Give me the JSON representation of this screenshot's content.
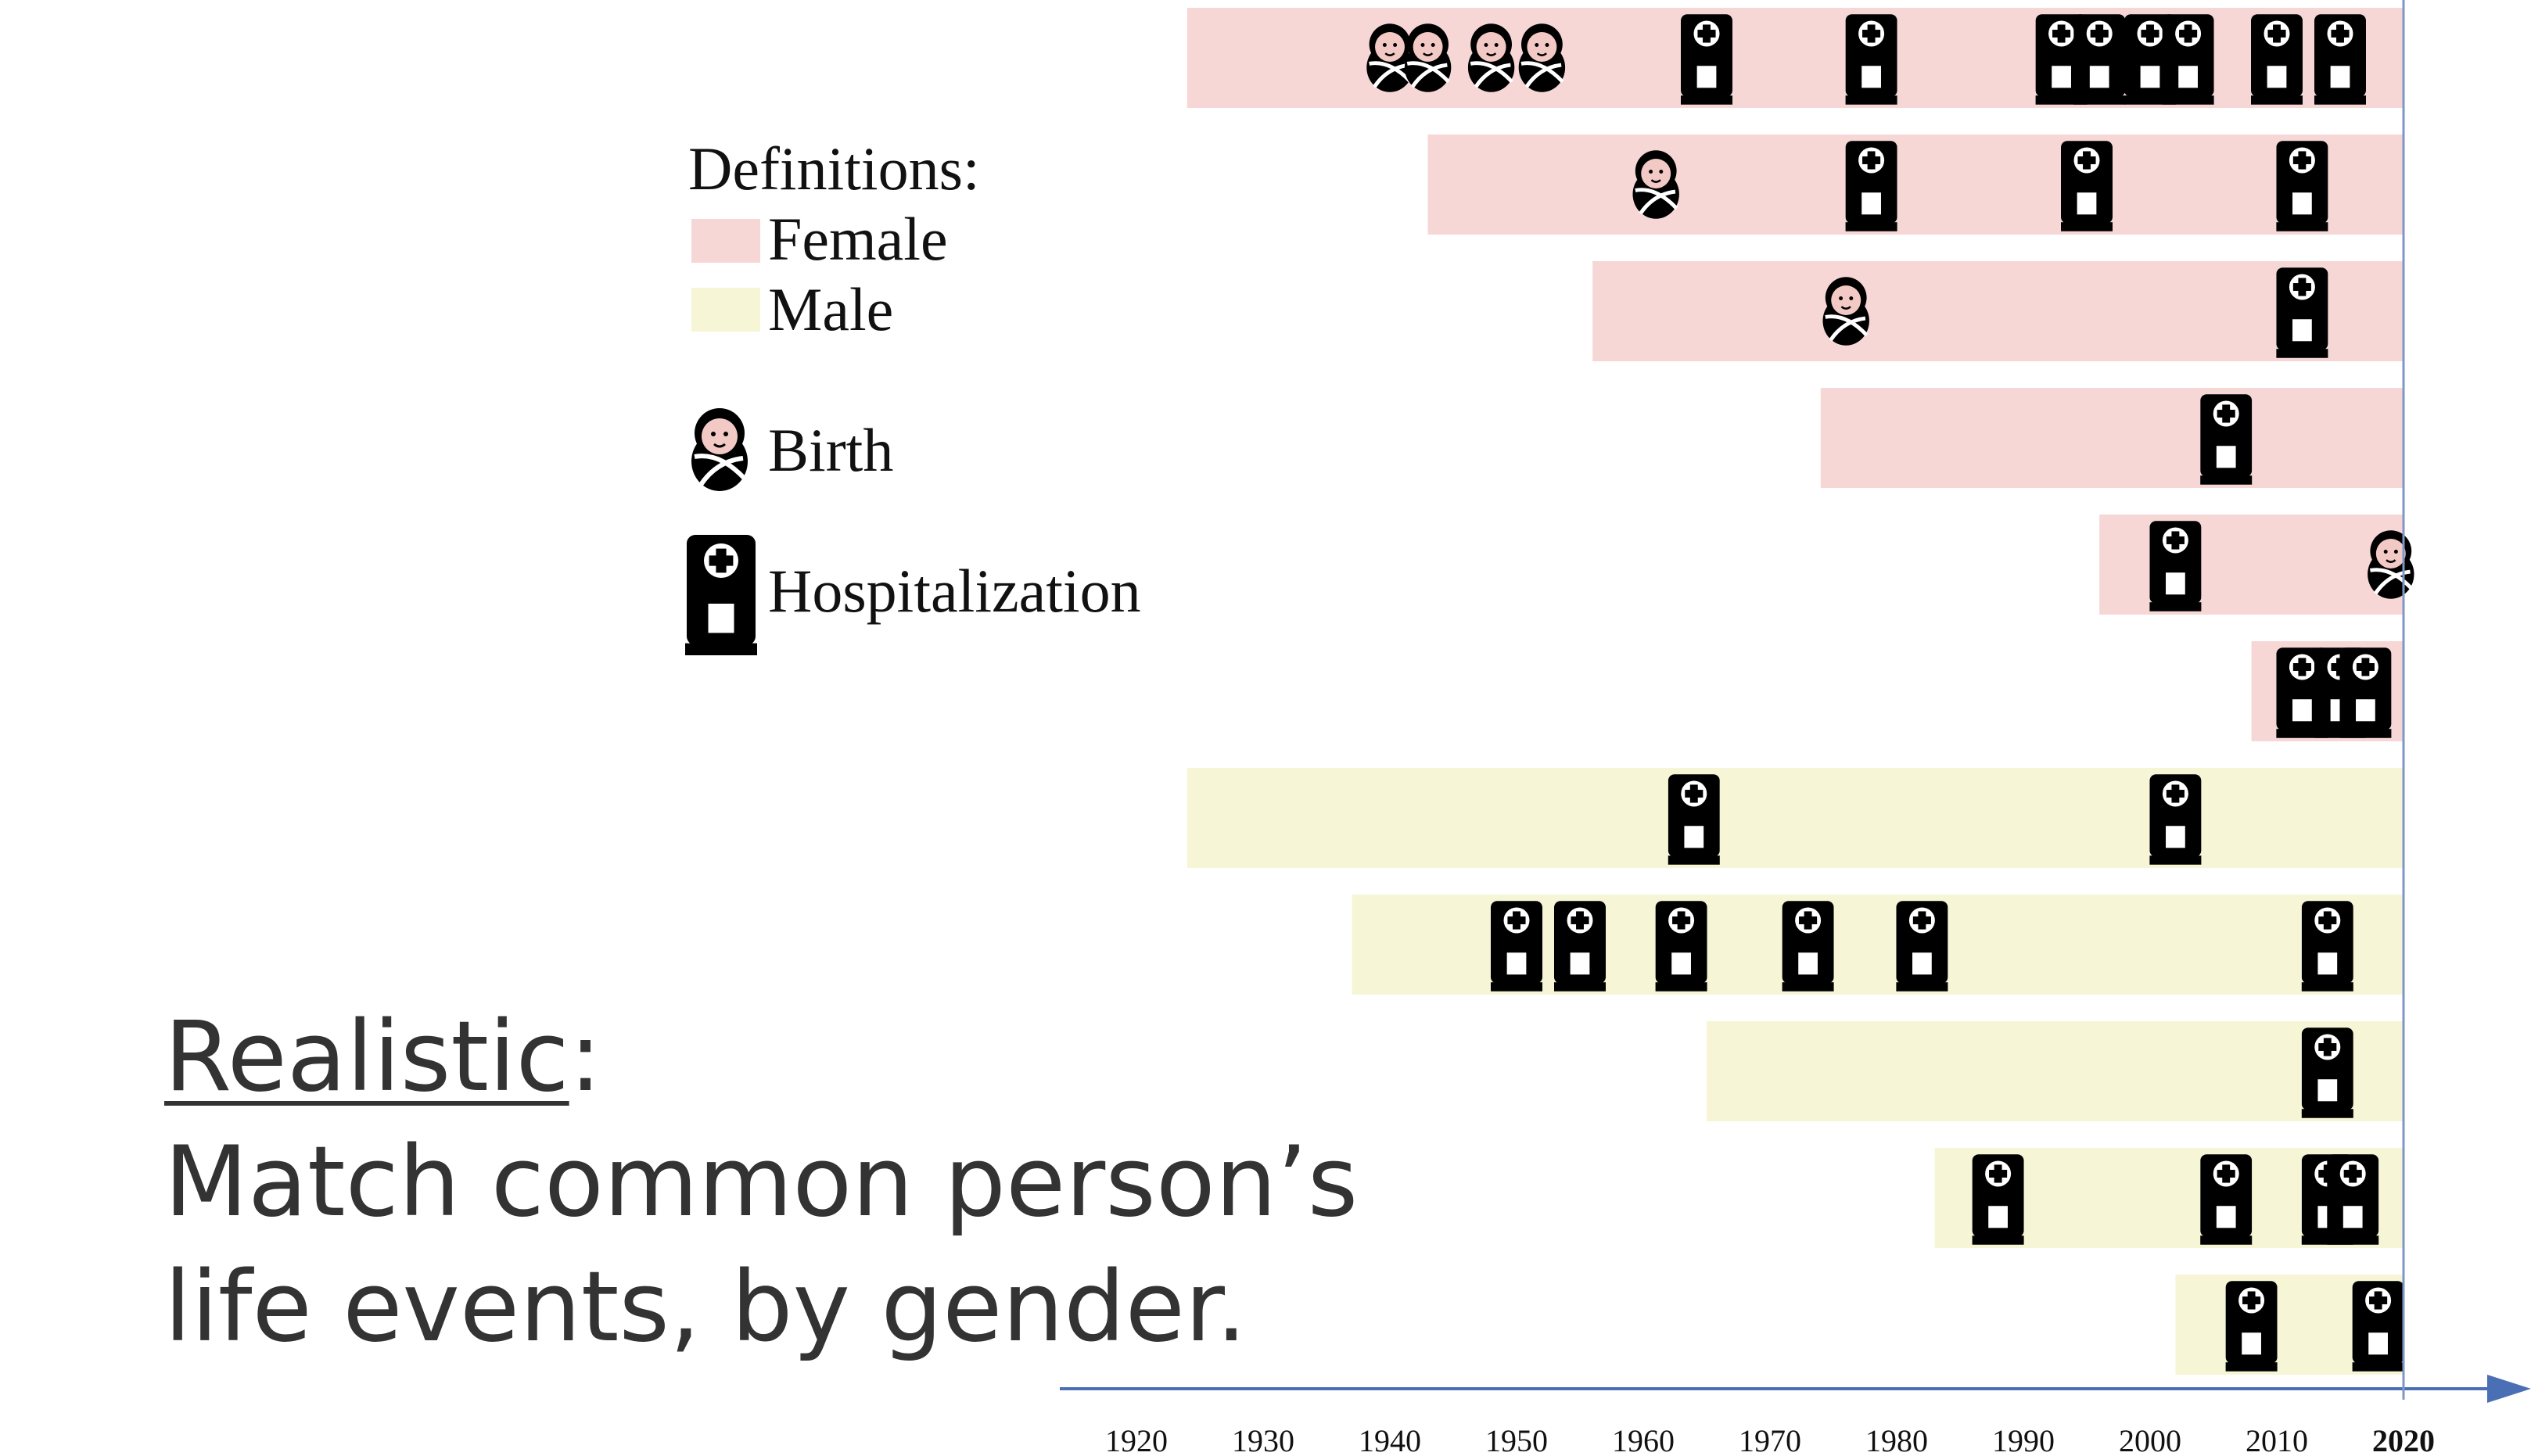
{
  "chart_data": {
    "type": "timeline",
    "x_axis": {
      "ticks": [
        1920,
        1930,
        1940,
        1950,
        1960,
        1970,
        1980,
        1990,
        2000,
        2010,
        2020
      ],
      "range": [
        1910,
        2030
      ],
      "current_year_marker": 2020
    },
    "legend": {
      "title": "Definitions:",
      "female_label": "Female",
      "male_label": "Male",
      "birth_label": "Birth",
      "hospitalization_label": "Hospitalization"
    },
    "colors": {
      "female": "#f7d6d6",
      "male": "#f6f6d7",
      "axis": "#4a6fb5",
      "icon": "#000000"
    },
    "people": [
      {
        "gender": "female",
        "start": 1924,
        "births": [
          1940,
          1943,
          1948,
          1952
        ],
        "hospitalizations": [
          1965,
          1978,
          1993,
          1996,
          2000,
          2003,
          2010,
          2015
        ]
      },
      {
        "gender": "female",
        "start": 1943,
        "births": [
          1961
        ],
        "hospitalizations": [
          1978,
          1995,
          2012
        ]
      },
      {
        "gender": "female",
        "start": 1956,
        "births": [
          1976
        ],
        "hospitalizations": [
          2012
        ]
      },
      {
        "gender": "female",
        "start": 1974,
        "births": [],
        "hospitalizations": [
          2006
        ]
      },
      {
        "gender": "female",
        "start": 1996,
        "births": [
          2019
        ],
        "hospitalizations": [
          2002
        ]
      },
      {
        "gender": "female",
        "start": 2008,
        "births": [],
        "hospitalizations": [
          2012,
          2015,
          2017
        ]
      },
      {
        "gender": "male",
        "start": 1924,
        "births": [],
        "hospitalizations": [
          1964,
          2002
        ]
      },
      {
        "gender": "male",
        "start": 1937,
        "births": [],
        "hospitalizations": [
          1950,
          1955,
          1963,
          1973,
          1982,
          2014
        ]
      },
      {
        "gender": "male",
        "start": 1965,
        "births": [],
        "hospitalizations": [
          2014
        ]
      },
      {
        "gender": "male",
        "start": 1983,
        "births": [],
        "hospitalizations": [
          1988,
          2006,
          2014,
          2016
        ]
      },
      {
        "gender": "male",
        "start": 2002,
        "births": [],
        "hospitalizations": [
          2008,
          2018
        ]
      }
    ]
  },
  "caption": {
    "title": "Realistic",
    "title_suffix": ":",
    "line1": "Match common person’s",
    "line2": "life events, by gender."
  }
}
